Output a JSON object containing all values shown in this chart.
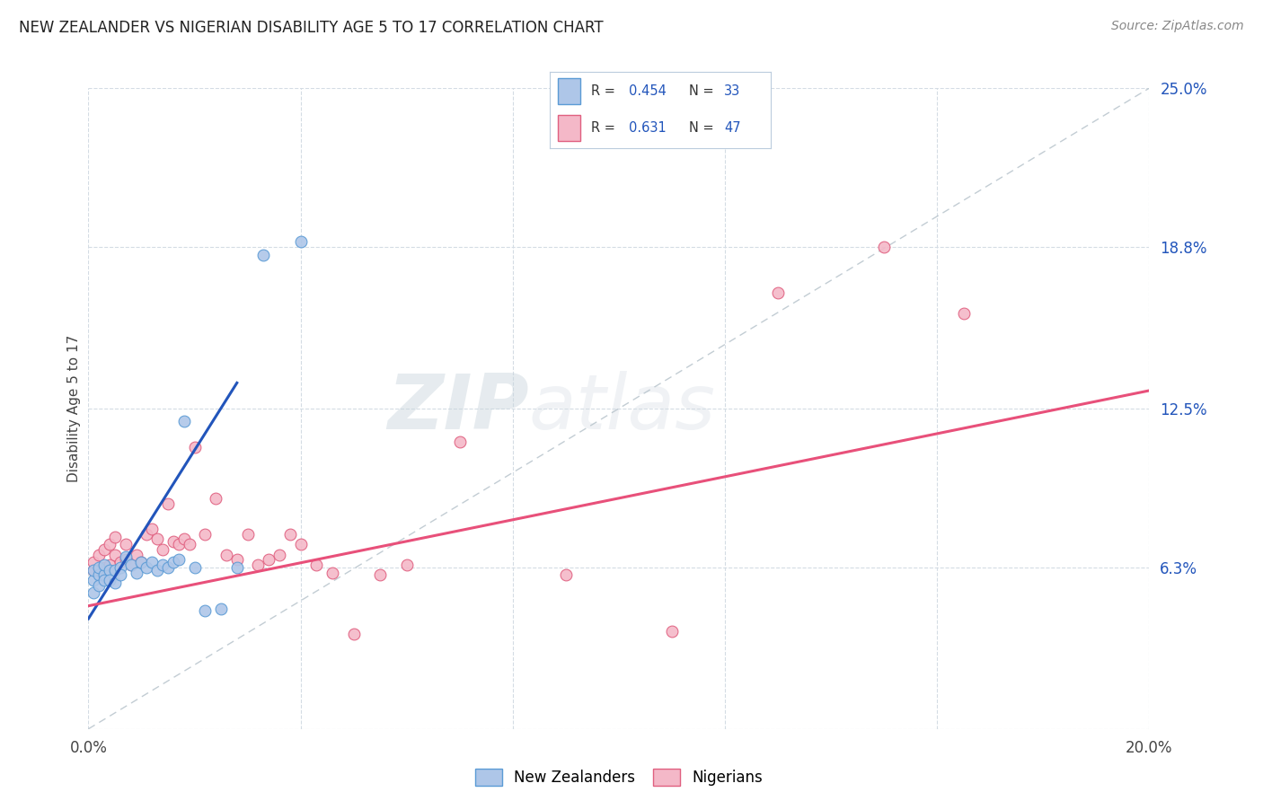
{
  "title": "NEW ZEALANDER VS NIGERIAN DISABILITY AGE 5 TO 17 CORRELATION CHART",
  "source": "Source: ZipAtlas.com",
  "ylabel": "Disability Age 5 to 17",
  "xmin": 0.0,
  "xmax": 0.2,
  "ymin": 0.0,
  "ymax": 0.25,
  "legend_nz_label": "New Zealanders",
  "legend_ng_label": "Nigerians",
  "R_nz": "0.454",
  "N_nz": "33",
  "R_ng": "0.631",
  "N_ng": "47",
  "color_nz_fill": "#aec6e8",
  "color_nz_edge": "#5b9bd5",
  "color_ng_fill": "#f4b8c8",
  "color_ng_edge": "#e06080",
  "color_nz_line": "#2255bb",
  "color_ng_line": "#e8507a",
  "color_diag": "#b8c4cc",
  "color_grid": "#d4dce4",
  "color_ytick": "#2255bb",
  "color_xtick": "#444444",
  "color_title": "#222222",
  "color_source": "#888888",
  "color_ylabel": "#444444",
  "color_watermark": "#ccd4dc",
  "watermark_zip": "ZIP",
  "watermark_atlas": "atlas",
  "nz_x": [
    0.001,
    0.001,
    0.001,
    0.002,
    0.002,
    0.002,
    0.003,
    0.003,
    0.003,
    0.004,
    0.004,
    0.005,
    0.005,
    0.006,
    0.006,
    0.007,
    0.008,
    0.009,
    0.01,
    0.011,
    0.012,
    0.013,
    0.014,
    0.015,
    0.016,
    0.017,
    0.018,
    0.02,
    0.022,
    0.025,
    0.028,
    0.033,
    0.04
  ],
  "nz_y": [
    0.058,
    0.062,
    0.053,
    0.06,
    0.063,
    0.056,
    0.06,
    0.058,
    0.064,
    0.062,
    0.058,
    0.057,
    0.062,
    0.063,
    0.06,
    0.067,
    0.064,
    0.061,
    0.065,
    0.063,
    0.065,
    0.062,
    0.064,
    0.063,
    0.065,
    0.066,
    0.12,
    0.063,
    0.046,
    0.047,
    0.063,
    0.185,
    0.19
  ],
  "ng_x": [
    0.001,
    0.001,
    0.002,
    0.002,
    0.003,
    0.003,
    0.004,
    0.004,
    0.005,
    0.005,
    0.006,
    0.007,
    0.007,
    0.008,
    0.009,
    0.01,
    0.011,
    0.012,
    0.013,
    0.014,
    0.015,
    0.016,
    0.017,
    0.018,
    0.019,
    0.02,
    0.022,
    0.024,
    0.026,
    0.028,
    0.03,
    0.032,
    0.034,
    0.036,
    0.038,
    0.04,
    0.043,
    0.046,
    0.05,
    0.055,
    0.06,
    0.07,
    0.09,
    0.11,
    0.13,
    0.15,
    0.165
  ],
  "ng_y": [
    0.062,
    0.065,
    0.062,
    0.068,
    0.063,
    0.07,
    0.064,
    0.072,
    0.068,
    0.075,
    0.065,
    0.066,
    0.072,
    0.064,
    0.068,
    0.065,
    0.076,
    0.078,
    0.074,
    0.07,
    0.088,
    0.073,
    0.072,
    0.074,
    0.072,
    0.11,
    0.076,
    0.09,
    0.068,
    0.066,
    0.076,
    0.064,
    0.066,
    0.068,
    0.076,
    0.072,
    0.064,
    0.061,
    0.037,
    0.06,
    0.064,
    0.112,
    0.06,
    0.038,
    0.17,
    0.188,
    0.162
  ],
  "nz_line_x0": 0.0,
  "nz_line_x1": 0.028,
  "nz_line_y0": 0.043,
  "nz_line_y1": 0.135,
  "ng_line_x0": 0.0,
  "ng_line_x1": 0.2,
  "ng_line_y0": 0.048,
  "ng_line_y1": 0.132
}
